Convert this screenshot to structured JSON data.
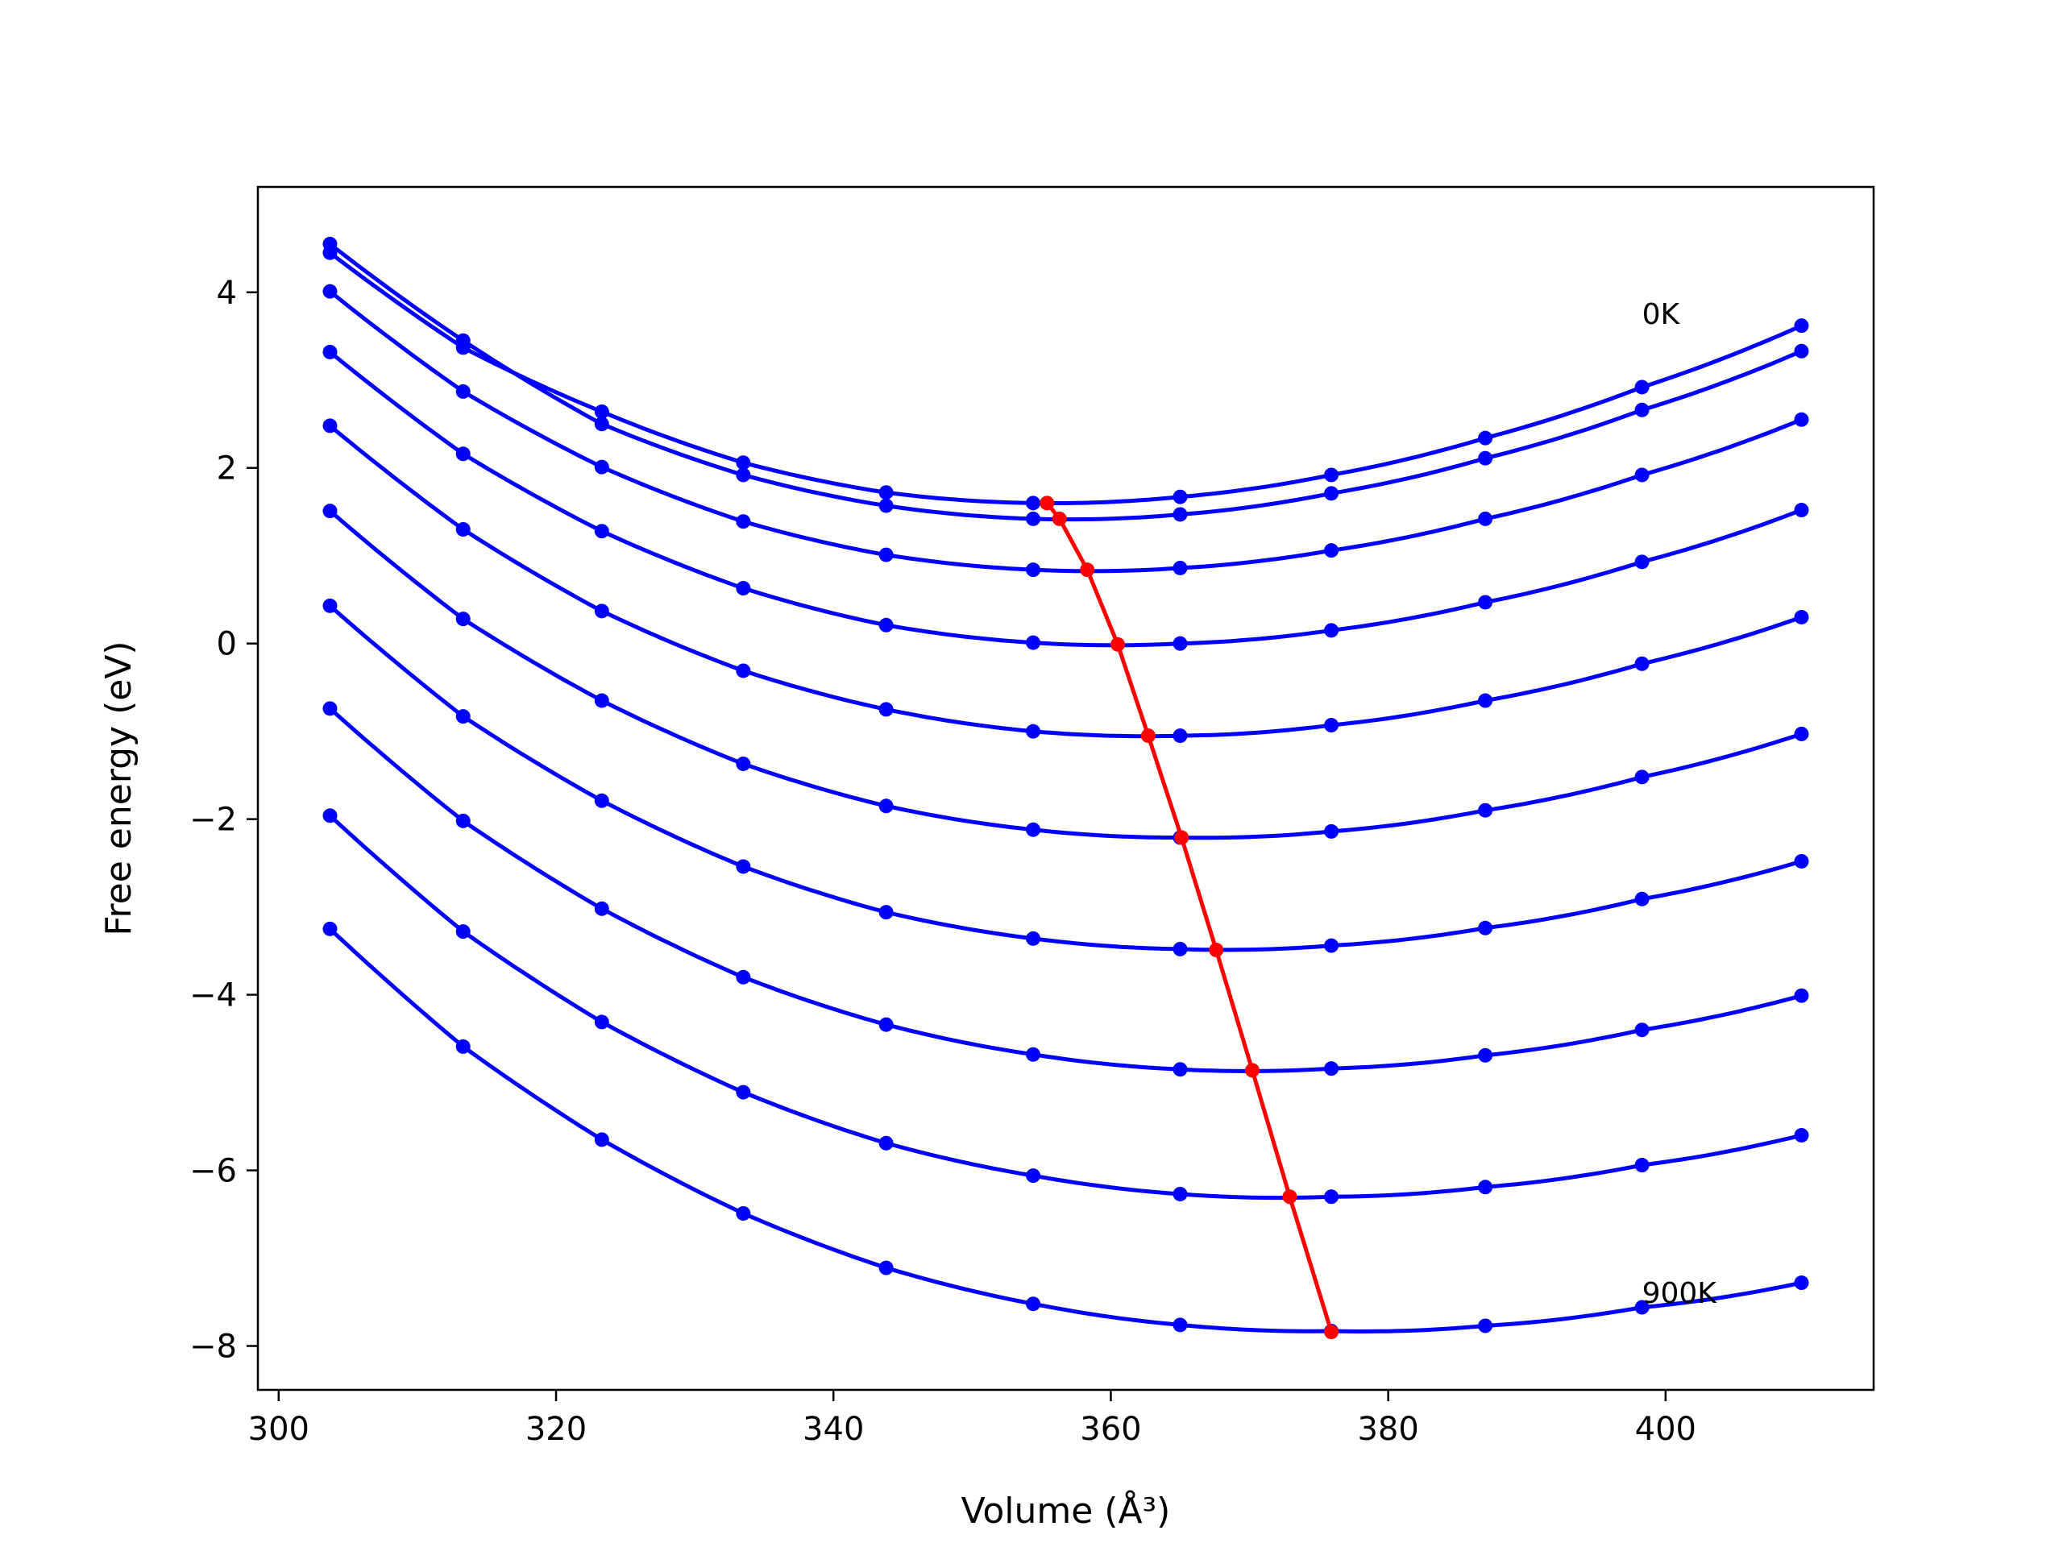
{
  "chart_data": {
    "type": "line",
    "xlabel": "Volume (Å³)",
    "ylabel": "Free energy (eV)",
    "xlim": [
      298.5,
      415.0
    ],
    "ylim": [
      -8.5,
      5.2
    ],
    "xticks": [
      300,
      320,
      340,
      360,
      380,
      400
    ],
    "yticks": [
      4,
      2,
      0,
      -2,
      -4,
      -6,
      -8
    ],
    "xtick_labels": [
      "300",
      "320",
      "340",
      "360",
      "380",
      "400"
    ],
    "ytick_labels": [
      "4",
      "2",
      "0",
      "−2",
      "−4",
      "−6",
      "−8"
    ],
    "grid": false,
    "legend": "none",
    "colors": {
      "curves": "#0000ff",
      "minima": "#ff0000"
    },
    "annotations": [
      {
        "text": "0K",
        "x": 398.3,
        "y": 3.75
      },
      {
        "text": "900K",
        "x": 398.3,
        "y": -7.4
      }
    ],
    "x": [
      303.7,
      313.3,
      323.3,
      333.5,
      343.8,
      354.4,
      365.0,
      375.9,
      387.0,
      398.3,
      409.8
    ],
    "series": [
      {
        "values": [
          4.45,
          3.37,
          2.64,
          2.06,
          1.72,
          1.6,
          1.67,
          1.92,
          2.34,
          2.92,
          3.62
        ]
      },
      {
        "values": [
          4.55,
          3.45,
          2.5,
          1.92,
          1.57,
          1.42,
          1.47,
          1.71,
          2.11,
          2.66,
          3.33
        ]
      },
      {
        "values": [
          4.01,
          2.87,
          2.01,
          1.39,
          1.01,
          0.84,
          0.86,
          1.06,
          1.42,
          1.92,
          2.55
        ]
      },
      {
        "values": [
          3.32,
          2.16,
          1.28,
          0.63,
          0.21,
          0.01,
          0.0,
          0.15,
          0.47,
          0.93,
          1.52
        ]
      },
      {
        "values": [
          2.48,
          1.3,
          0.37,
          -0.31,
          -0.75,
          -1.0,
          -1.05,
          -0.93,
          -0.65,
          -0.23,
          0.3
        ]
      },
      {
        "values": [
          1.51,
          0.28,
          -0.65,
          -1.37,
          -1.85,
          -2.12,
          -2.21,
          -2.14,
          -1.9,
          -1.52,
          -1.03
        ]
      },
      {
        "values": [
          0.43,
          -0.83,
          -1.79,
          -2.54,
          -3.06,
          -3.36,
          -3.48,
          -3.44,
          -3.24,
          -2.91,
          -2.48
        ]
      },
      {
        "values": [
          -0.74,
          -2.02,
          -3.02,
          -3.8,
          -4.34,
          -4.68,
          -4.85,
          -4.84,
          -4.69,
          -4.4,
          -4.01
        ]
      },
      {
        "values": [
          -1.96,
          -3.28,
          -4.31,
          -5.11,
          -5.69,
          -6.06,
          -6.27,
          -6.3,
          -6.19,
          -5.94,
          -5.6
        ]
      },
      {
        "values": [
          -3.25,
          -4.59,
          -5.65,
          -6.49,
          -7.11,
          -7.52,
          -7.76,
          -7.83,
          -7.77,
          -7.56,
          -7.28
        ]
      }
    ],
    "minima": {
      "x": [
        355.4,
        356.3,
        358.3,
        360.5,
        362.7,
        365.1,
        367.6,
        370.2,
        372.9,
        375.9
      ],
      "y": [
        1.6,
        1.42,
        0.84,
        -0.01,
        -1.05,
        -2.21,
        -3.49,
        -4.86,
        -6.3,
        -7.84
      ]
    }
  }
}
